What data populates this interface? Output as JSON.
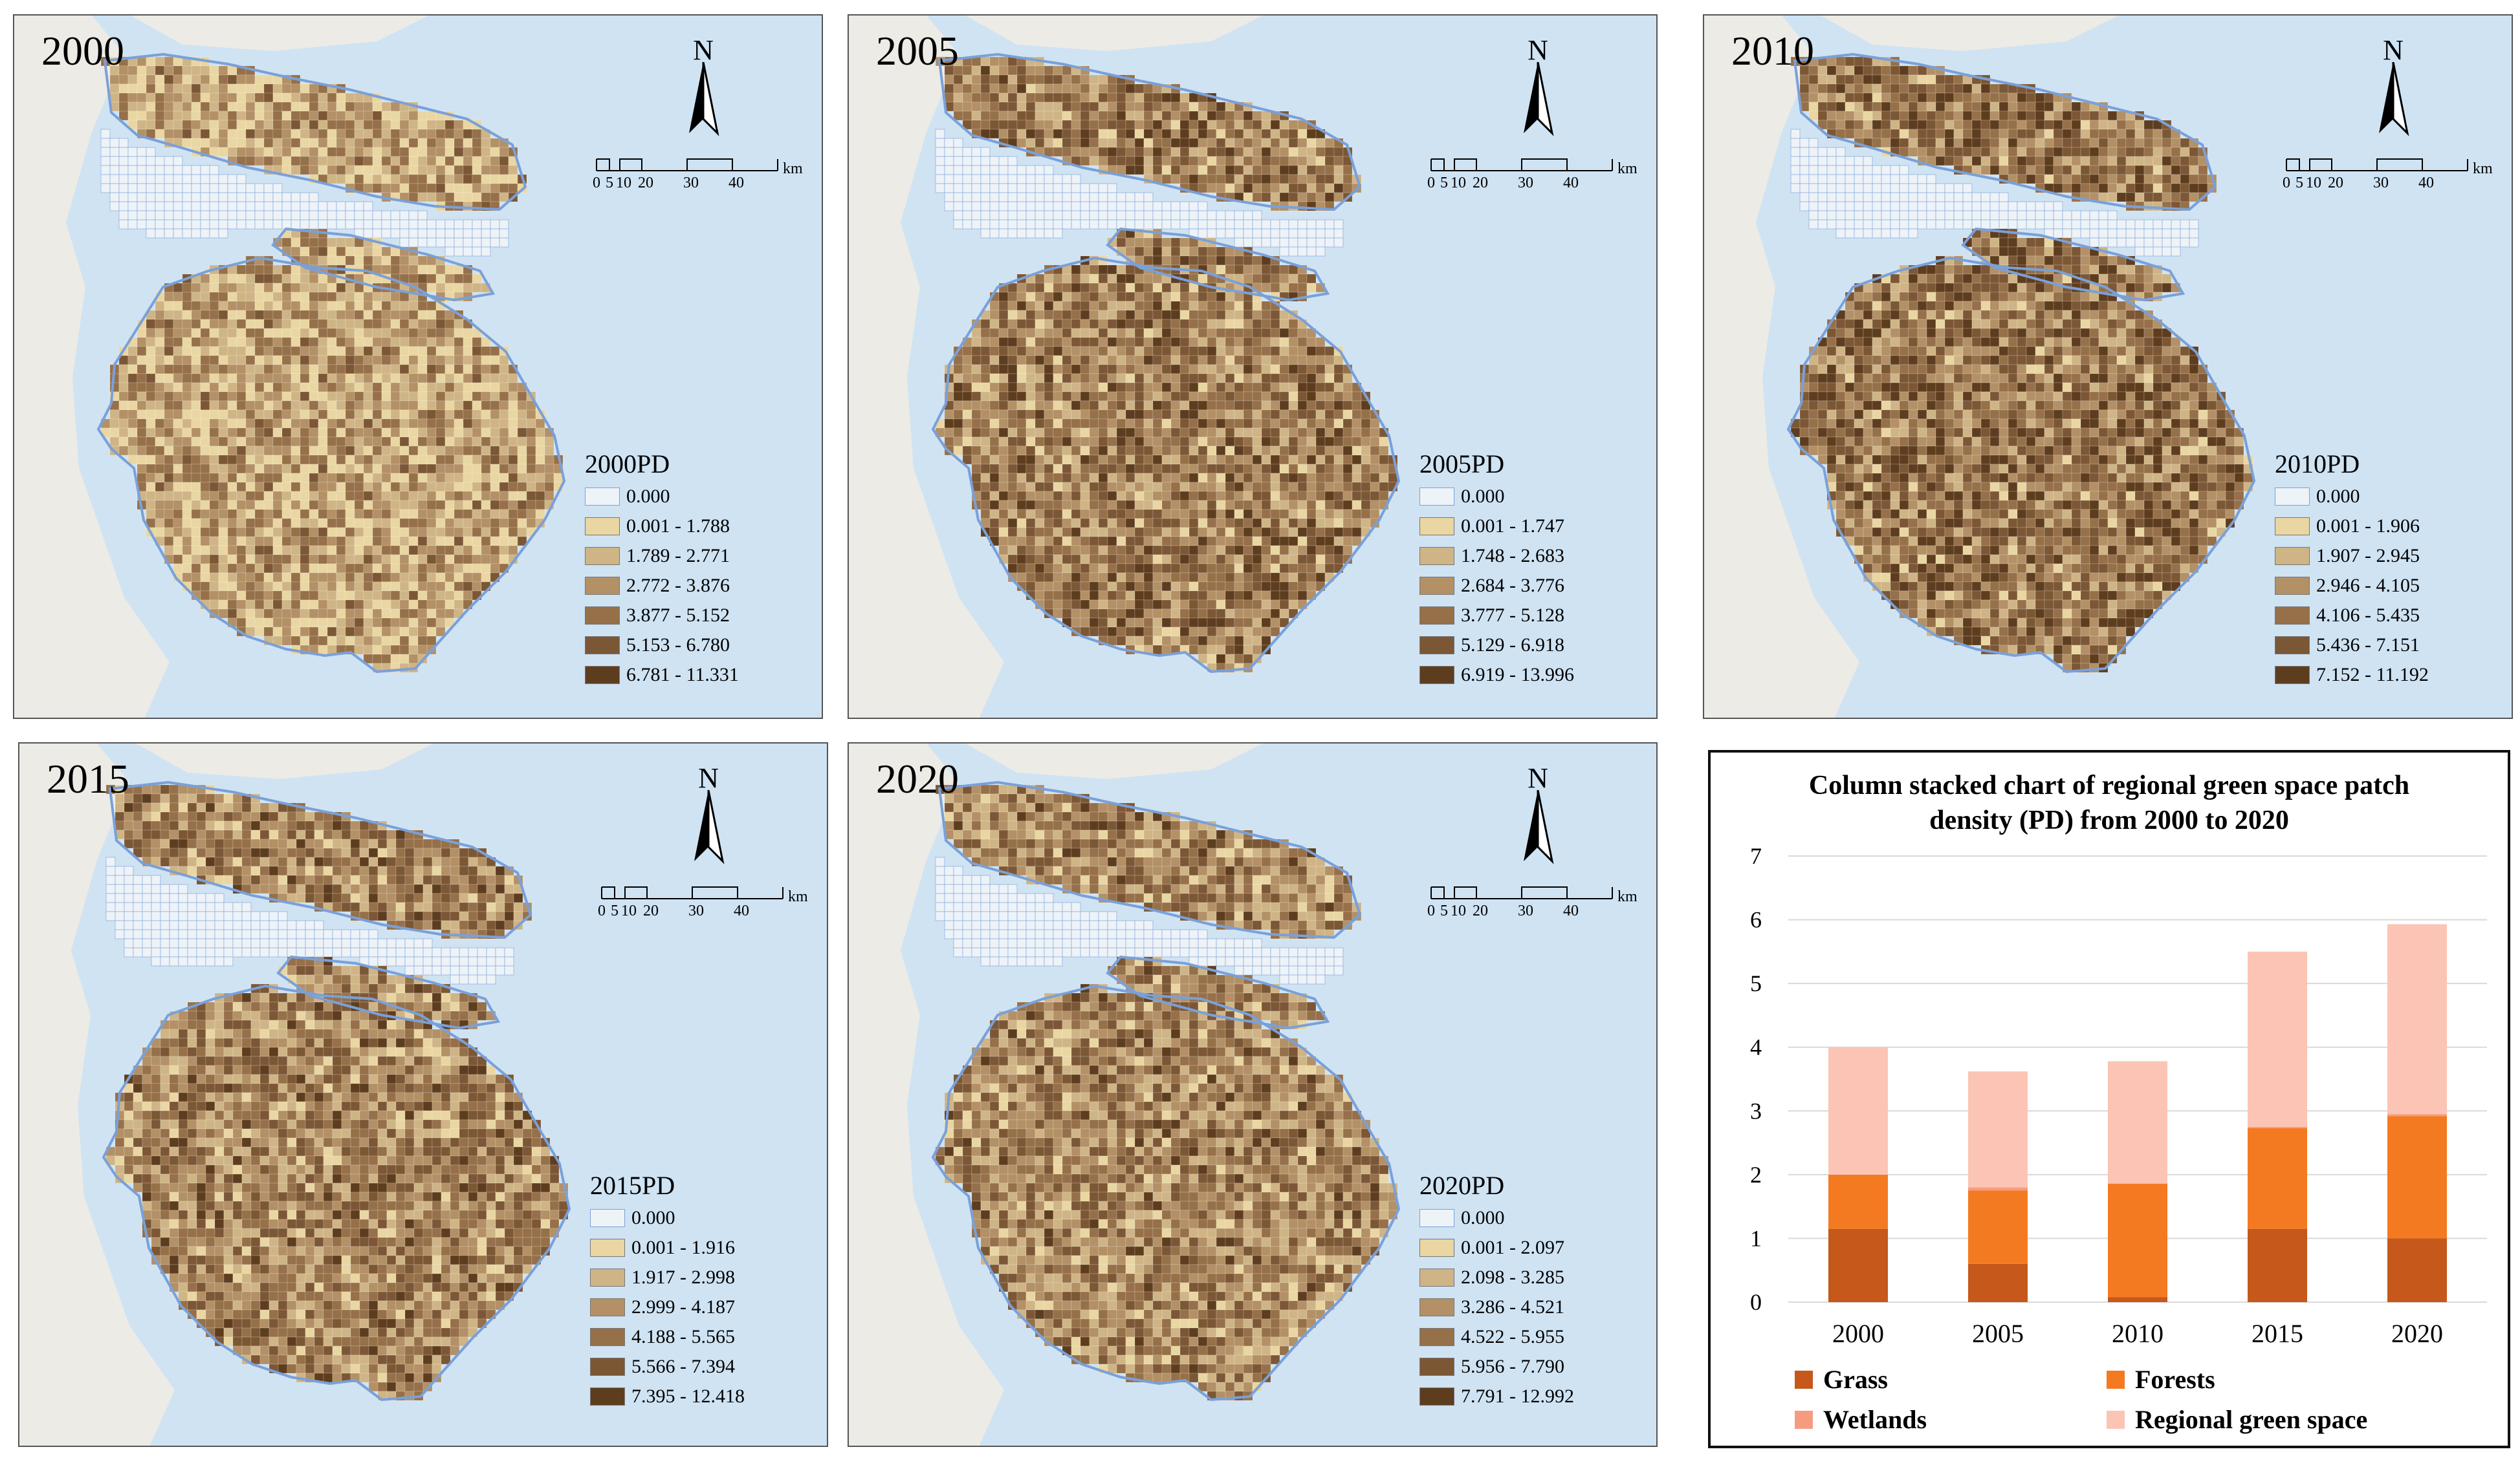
{
  "colors": {
    "water": "#cfe3f3",
    "land": "#ecebe6",
    "outline": "#7aa0d8",
    "pd_classes": [
      "#eef3f8",
      "#e9d6a2",
      "#cfb486",
      "#b39066",
      "#967049",
      "#7c5735",
      "#5e3d1f"
    ]
  },
  "scale_bar": {
    "ticks": [
      "0",
      "5",
      "10",
      "20",
      "30",
      "40"
    ],
    "unit": "km",
    "north_label": "N"
  },
  "maps": [
    {
      "year": "2000",
      "legend_title": "2000PD",
      "classes": [
        "0.000",
        "0.001 - 1.788",
        "1.789 - 2.771",
        "2.772 - 3.876",
        "3.877 - 5.152",
        "5.153 - 6.780",
        "6.781 - 11.331"
      ]
    },
    {
      "year": "2005",
      "legend_title": "2005PD",
      "classes": [
        "0.000",
        "0.001 - 1.747",
        "1.748 - 2.683",
        "2.684 - 3.776",
        "3.777 - 5.128",
        "5.129 - 6.918",
        "6.919 - 13.996"
      ]
    },
    {
      "year": "2010",
      "legend_title": "2010PD",
      "classes": [
        "0.000",
        "0.001 - 1.906",
        "1.907 - 2.945",
        "2.946 - 4.105",
        "4.106 - 5.435",
        "5.436 - 7.151",
        "7.152 - 11.192"
      ]
    },
    {
      "year": "2015",
      "legend_title": "2015PD",
      "classes": [
        "0.000",
        "0.001 - 1.916",
        "1.917 - 2.998",
        "2.999 - 4.187",
        "4.188 - 5.565",
        "5.566 - 7.394",
        "7.395 - 12.418"
      ]
    },
    {
      "year": "2020",
      "legend_title": "2020PD",
      "classes": [
        "0.000",
        "0.001 - 2.097",
        "2.098 - 3.285",
        "3.286 - 4.521",
        "4.522 - 5.955",
        "5.956 - 7.790",
        "7.791 - 12.992"
      ]
    }
  ],
  "chart_data": {
    "type": "bar",
    "stacked": true,
    "title": "Column stacked chart of regional green space patch density (PD) from 2000 to 2020",
    "categories": [
      "2000",
      "2005",
      "2010",
      "2015",
      "2020"
    ],
    "ylim": [
      0,
      7
    ],
    "yticks": [
      "0",
      "1",
      "2",
      "3",
      "4",
      "5",
      "6",
      "7"
    ],
    "grid": true,
    "legend_position": "bottom",
    "series": [
      {
        "name": "Grass",
        "color": "#c5581a",
        "values": [
          1.15,
          0.6,
          0.08,
          1.15,
          1.0
        ]
      },
      {
        "name": "Forests",
        "color": "#f47a22",
        "values": [
          0.85,
          1.15,
          1.78,
          1.58,
          1.92
        ]
      },
      {
        "name": "Wetlands",
        "color": "#f59c80",
        "values": [
          0.0,
          0.05,
          0.0,
          0.02,
          0.03
        ]
      },
      {
        "name": "Regional green space",
        "color": "#fcc4b4",
        "values": [
          2.0,
          1.82,
          1.92,
          2.75,
          2.98
        ]
      }
    ]
  }
}
